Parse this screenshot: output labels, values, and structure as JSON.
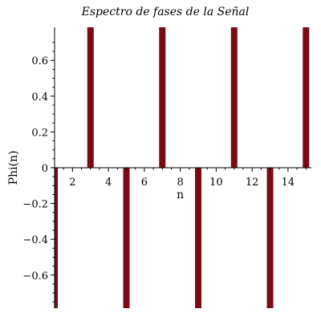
{
  "chart_data": {
    "type": "bar",
    "title": "Espectro de fases de la Señal",
    "xlabel": "n",
    "ylabel": "Phi(n)",
    "x": [
      1,
      3,
      5,
      7,
      9,
      11,
      13,
      15
    ],
    "values": [
      -0.785,
      0.785,
      -0.785,
      0.785,
      -0.785,
      0.785,
      -0.785,
      0.785
    ],
    "xlim": [
      1,
      15.3
    ],
    "ylim": [
      -0.785,
      0.785
    ],
    "x_ticks": [
      2,
      4,
      6,
      8,
      10,
      12,
      14
    ],
    "x_tick_labels": [
      "2",
      "4",
      "6",
      "8",
      "10",
      "12",
      "14"
    ],
    "y_ticks": [
      -0.6,
      -0.4,
      -0.2,
      0,
      0.2,
      0.4,
      0.6
    ],
    "y_tick_labels": [
      "−0.6",
      "−0.4",
      "−0.2",
      "0",
      "0.2",
      "0.4",
      "0.6"
    ],
    "grid": false,
    "bar_color": "#7b0a15"
  }
}
